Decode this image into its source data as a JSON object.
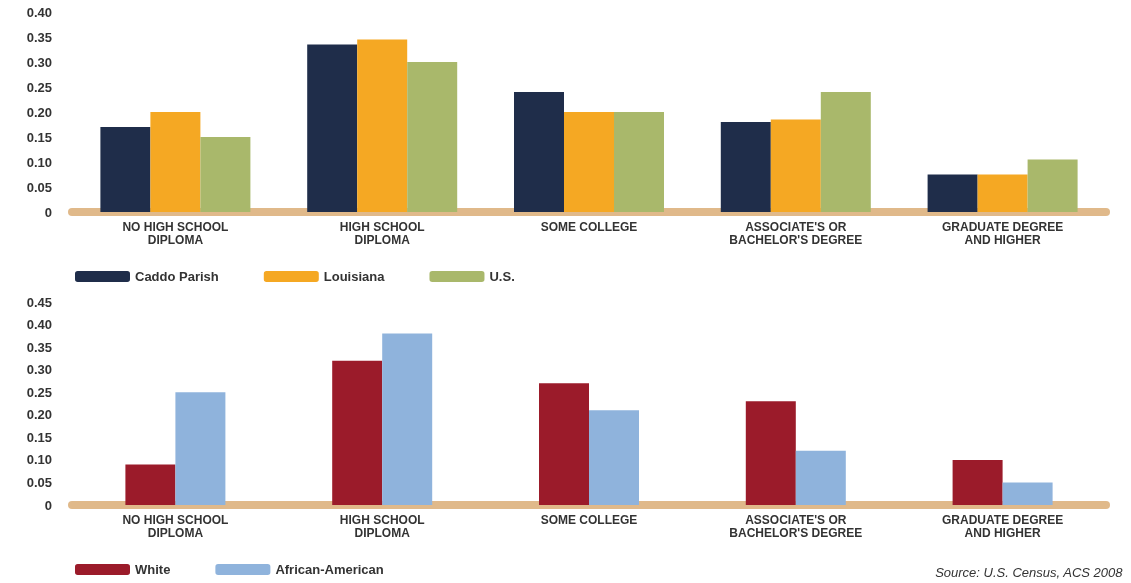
{
  "chart_data": [
    {
      "type": "bar",
      "categories": [
        "NO HIGH SCHOOL\nDIPLOMA",
        "HIGH SCHOOL\nDIPLOMA",
        "SOME COLLEGE",
        "ASSOCIATE'S OR\nBACHELOR'S DEGREE",
        "GRADUATE DEGREE\nAND HIGHER"
      ],
      "series": [
        {
          "name": "Caddo Parish",
          "color": "#1f2d4a",
          "values": [
            0.17,
            0.335,
            0.24,
            0.18,
            0.075
          ]
        },
        {
          "name": "Louisiana",
          "color": "#f5a823",
          "values": [
            0.2,
            0.345,
            0.2,
            0.185,
            0.075
          ]
        },
        {
          "name": "U.S.",
          "color": "#a9b86b",
          "values": [
            0.15,
            0.3,
            0.2,
            0.24,
            0.105
          ]
        }
      ],
      "ylim": [
        0,
        0.4
      ],
      "yticks": [
        {
          "value": 0,
          "label": "0"
        },
        {
          "value": 0.05,
          "label": "0.05"
        },
        {
          "value": 0.1,
          "label": "0.10"
        },
        {
          "value": 0.15,
          "label": "0.15"
        },
        {
          "value": 0.2,
          "label": "0.20"
        },
        {
          "value": 0.25,
          "label": "0.25"
        },
        {
          "value": 0.3,
          "label": "0.30"
        },
        {
          "value": 0.35,
          "label": "0.35"
        },
        {
          "value": 0.4,
          "label": "0.40"
        }
      ],
      "grid": false,
      "legend": "bottom left"
    },
    {
      "type": "bar",
      "categories": [
        "NO HIGH SCHOOL\nDIPLOMA",
        "HIGH SCHOOL\nDIPLOMA",
        "SOME COLLEGE",
        "ASSOCIATE'S OR\nBACHELOR'S DEGREE",
        "GRADUATE DEGREE\nAND HIGHER"
      ],
      "series": [
        {
          "name": "White",
          "color": "#9b1b2a",
          "values": [
            0.09,
            0.32,
            0.27,
            0.23,
            0.1
          ]
        },
        {
          "name": "African-American",
          "color": "#8fb3dc",
          "values": [
            0.25,
            0.38,
            0.21,
            0.12,
            0.05
          ]
        }
      ],
      "ylim": [
        0,
        0.45
      ],
      "yticks": [
        {
          "value": 0,
          "label": "0"
        },
        {
          "value": 0.05,
          "label": "0.05"
        },
        {
          "value": 0.1,
          "label": "0.10"
        },
        {
          "value": 0.15,
          "label": "0.15"
        },
        {
          "value": 0.2,
          "label": "0.20"
        },
        {
          "value": 0.25,
          "label": "0.25"
        },
        {
          "value": 0.3,
          "label": "0.30"
        },
        {
          "value": 0.35,
          "label": "0.35"
        },
        {
          "value": 0.4,
          "label": "0.40"
        },
        {
          "value": 0.45,
          "label": "0.45"
        }
      ],
      "grid": false,
      "legend": "bottom left",
      "annotations": [
        "Source: U.S. Census, ACS 2008"
      ]
    }
  ]
}
